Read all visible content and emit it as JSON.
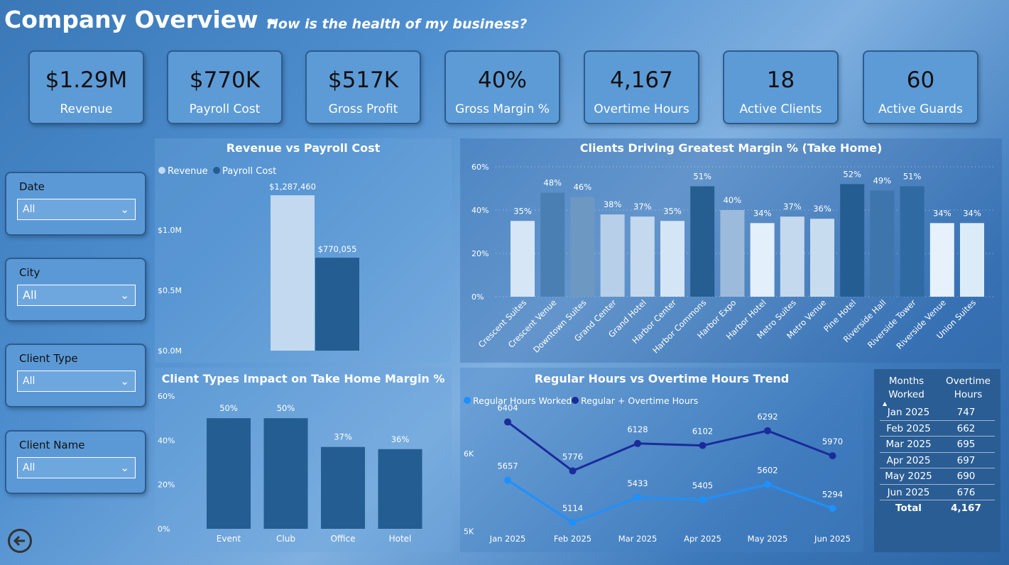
{
  "header": {
    "title": "Company Overview -",
    "subtitle": "How is the health of my business?"
  },
  "kpis": [
    {
      "value": "$1.29M",
      "label": "Revenue"
    },
    {
      "value": "$770K",
      "label": "Payroll Cost"
    },
    {
      "value": "$517K",
      "label": "Gross Profit"
    },
    {
      "value": "40%",
      "label": "Gross Margin %"
    },
    {
      "value": "4,167",
      "label": "Overtime Hours"
    },
    {
      "value": "18",
      "label": "Active Clients"
    },
    {
      "value": "60",
      "label": "Active Guards"
    }
  ],
  "slicers": [
    {
      "label": "Date",
      "value": "All"
    },
    {
      "label": "City",
      "value": "All"
    },
    {
      "label": "Client Type",
      "value": "All"
    },
    {
      "label": "Client Name",
      "value": "All"
    }
  ],
  "colors": {
    "light": "#c2d9f0",
    "dark": "#245d91",
    "line_light": "#1e90ff",
    "line_dark": "#1a2b9a"
  },
  "icons": {
    "back": "back-arrow-icon",
    "dropdown": "chevron-down-icon",
    "sort": "sort-ascending-icon"
  },
  "chart_data": [
    {
      "type": "bar",
      "title": "Revenue vs Payroll Cost",
      "legend": [
        "Revenue",
        "Payroll Cost"
      ],
      "legend_position": "top-left",
      "categories": [
        "Revenue",
        "Payroll Cost"
      ],
      "values": [
        1287460,
        770055
      ],
      "data_labels": [
        "$1,287,460",
        "$770,055"
      ],
      "yticks": [
        "$0.0M",
        "$0.5M",
        "$1.0M"
      ],
      "ylim": [
        0,
        1400000
      ]
    },
    {
      "type": "bar",
      "title": "Clients Driving Greatest Margin % (Take Home)",
      "categories": [
        "Crescent Suites",
        "Crescent Venue",
        "Downtown Suites",
        "Grand Center",
        "Grand Hotel",
        "Harbor Center",
        "Harbor Commons",
        "Harbor Expo",
        "Harbor Hotel",
        "Metro Suites",
        "Metro Venue",
        "Pine Hotel",
        "Riverside Hall",
        "Riverside Tower",
        "Riverside Venue",
        "Union Suites"
      ],
      "values": [
        35,
        48,
        46,
        38,
        37,
        35,
        51,
        40,
        34,
        37,
        36,
        52,
        49,
        51,
        34,
        34
      ],
      "data_labels": [
        "35%",
        "48%",
        "46%",
        "38%",
        "37%",
        "35%",
        "51%",
        "40%",
        "34%",
        "37%",
        "36%",
        "52%",
        "49%",
        "51%",
        "34%",
        "34%"
      ],
      "bar_colors": [
        "#d6e6f6",
        "#4a7fb3",
        "#6d98c2",
        "#b7cfe8",
        "#c4d8ee",
        "#d4e5f5",
        "#265e92",
        "#9cbbdc",
        "#e3effa",
        "#c4d8ee",
        "#c8dcf0",
        "#245d91",
        "#3d75ac",
        "#2f6ba2",
        "#e6f1fb",
        "#dcebf8"
      ],
      "yticks": [
        "0%",
        "20%",
        "40%",
        "60%"
      ],
      "ylim": [
        0,
        60
      ],
      "grid": true
    },
    {
      "type": "bar",
      "title": "Client Types Impact on Take Home Margin %",
      "categories": [
        "Event",
        "Club",
        "Office",
        "Hotel"
      ],
      "values": [
        50,
        50,
        37,
        36
      ],
      "data_labels": [
        "50%",
        "50%",
        "37%",
        "36%"
      ],
      "yticks": [
        "0%",
        "20%",
        "40%",
        "60%"
      ],
      "ylim": [
        0,
        60
      ]
    },
    {
      "type": "line",
      "title": "Regular Hours vs Overtime Hours Trend",
      "legend_position": "top-left",
      "x": [
        "Jan 2025",
        "Feb 2025",
        "Mar 2025",
        "Apr 2025",
        "May 2025",
        "Jun 2025"
      ],
      "series": [
        {
          "name": "Regular Hours Worked",
          "values": [
            5657,
            5114,
            5433,
            5405,
            5602,
            5294
          ]
        },
        {
          "name": "Regular + Overtime Hours",
          "values": [
            6404,
            5776,
            6128,
            6102,
            6292,
            5970
          ]
        }
      ],
      "yticks": [
        "5K",
        "6K"
      ],
      "ylim": [
        4950,
        6500
      ]
    }
  ],
  "table": {
    "headers": [
      "Months Worked",
      "Overtime Hours"
    ],
    "rows": [
      {
        "month": "Jan 2025",
        "hours": "747"
      },
      {
        "month": "Feb 2025",
        "hours": "662"
      },
      {
        "month": "Mar 2025",
        "hours": "695"
      },
      {
        "month": "Apr 2025",
        "hours": "697"
      },
      {
        "month": "May 2025",
        "hours": "690"
      },
      {
        "month": "Jun 2025",
        "hours": "676"
      }
    ],
    "total_label": "Total",
    "total_value": "4,167"
  }
}
